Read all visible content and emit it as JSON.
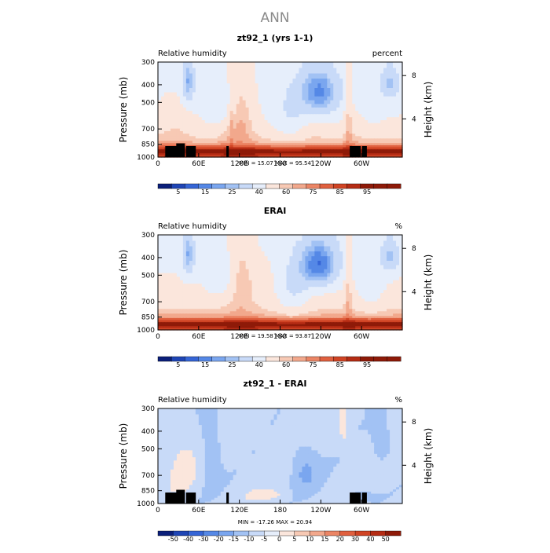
{
  "page_title": "ANN",
  "chart_data": [
    {
      "type": "heatmap",
      "title": "zt92_1 (yrs 1-1)",
      "left_label": "Relative humidity",
      "units": "percent",
      "ylabel": "Pressure (mb)",
      "ylabel_right": "Height (km)",
      "x_ticks": [
        "0",
        "60E",
        "120E",
        "180",
        "120W",
        "60W"
      ],
      "y_ticks": [
        "300",
        "400",
        "500",
        "700",
        "850",
        "1000"
      ],
      "y_ticks_right": [
        "8",
        "4"
      ],
      "stats": "MIN =   15.07   MAX =   95.54",
      "colorbar_labels": [
        "5",
        "15",
        "25",
        "40",
        "60",
        "75",
        "85",
        "95"
      ],
      "colorbar_levels": [
        0,
        5,
        10,
        15,
        20,
        25,
        30,
        40,
        50,
        60,
        65,
        70,
        75,
        80,
        85,
        90,
        95
      ],
      "min": 15.07,
      "max": 95.54
    },
    {
      "type": "heatmap",
      "title": "ERAI",
      "left_label": "Relative humidity",
      "units": "%",
      "ylabel": "Pressure (mb)",
      "ylabel_right": "Height (km)",
      "x_ticks": [
        "0",
        "60E",
        "120E",
        "180",
        "120W",
        "60W"
      ],
      "y_ticks": [
        "300",
        "400",
        "500",
        "700",
        "850",
        "1000"
      ],
      "y_ticks_right": [
        "8",
        "4"
      ],
      "stats": "MIN =   19.58   MAX =   93.87",
      "colorbar_labels": [
        "5",
        "15",
        "25",
        "40",
        "60",
        "75",
        "85",
        "95"
      ],
      "colorbar_levels": [
        0,
        5,
        10,
        15,
        20,
        25,
        30,
        40,
        50,
        60,
        65,
        70,
        75,
        80,
        85,
        90,
        95
      ],
      "min": 19.58,
      "max": 93.87
    },
    {
      "type": "heatmap",
      "title": "zt92_1 - ERAI",
      "left_label": "Relative humidity",
      "units": "%",
      "ylabel": "Pressure (mb)",
      "ylabel_right": "Height (km)",
      "x_ticks": [
        "0",
        "60E",
        "120E",
        "180",
        "120W",
        "60W"
      ],
      "y_ticks": [
        "300",
        "400",
        "500",
        "700",
        "850",
        "1000"
      ],
      "y_ticks_right": [
        "8",
        "4"
      ],
      "stats": "MIN =  -17.26   MAX =   20.94",
      "colorbar_labels": [
        "-50",
        "-40",
        "-30",
        "-20",
        "-15",
        "-10",
        "-5",
        "0",
        "5",
        "10",
        "15",
        "20",
        "30",
        "40",
        "50"
      ],
      "colorbar_levels": [
        -50,
        -40,
        -30,
        -20,
        -15,
        -10,
        -5,
        0,
        5,
        10,
        15,
        20,
        30,
        40,
        50
      ],
      "min": -17.26,
      "max": 20.94
    }
  ],
  "colors": {
    "palette": [
      "#0b1f7a",
      "#1f45b5",
      "#3565d6",
      "#5588e6",
      "#7aa6ef",
      "#a2c2f4",
      "#c8daf8",
      "#e6eefb",
      "#fbe6dc",
      "#f7c9b4",
      "#f2a88c",
      "#eb8565",
      "#e0603f",
      "#d04424",
      "#b52c14",
      "#8e1a08"
    ]
  }
}
